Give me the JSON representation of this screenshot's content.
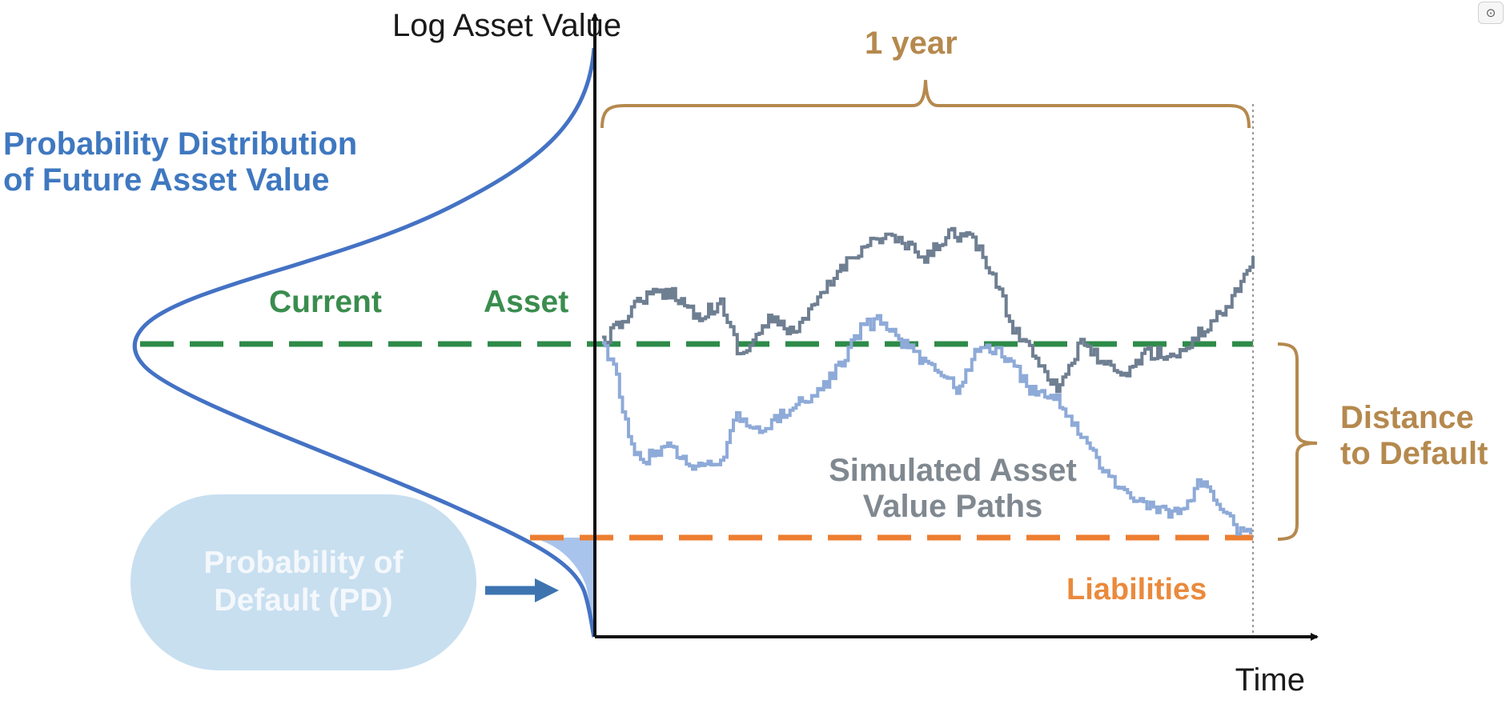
{
  "labels": {
    "y_axis": "Log Asset Value",
    "x_axis": "Time",
    "horizon": "1 year",
    "distribution": "Probability Distribution of Future Asset Value",
    "current_a": "Current",
    "current_b": "Asset",
    "distance": "Distance to Default",
    "simulated": "Simulated Asset Value Paths",
    "liabilities": "Liabilities",
    "pd": "Probability of Default (PD)"
  },
  "colors": {
    "axis": "#111111",
    "distribution": "#4472c4",
    "current_asset_line": "#2e8b4a",
    "liabilities_line": "#ed7d31",
    "bracket": "#b5894e",
    "path_dark": "#6f7f92",
    "path_light": "#8eaad8",
    "pd_fill": "#a9c4ec",
    "pd_bubble": "#c8dff0",
    "pd_arrow": "#3d74b0"
  },
  "icons": {
    "corner_button": "screenshot-icon"
  }
}
